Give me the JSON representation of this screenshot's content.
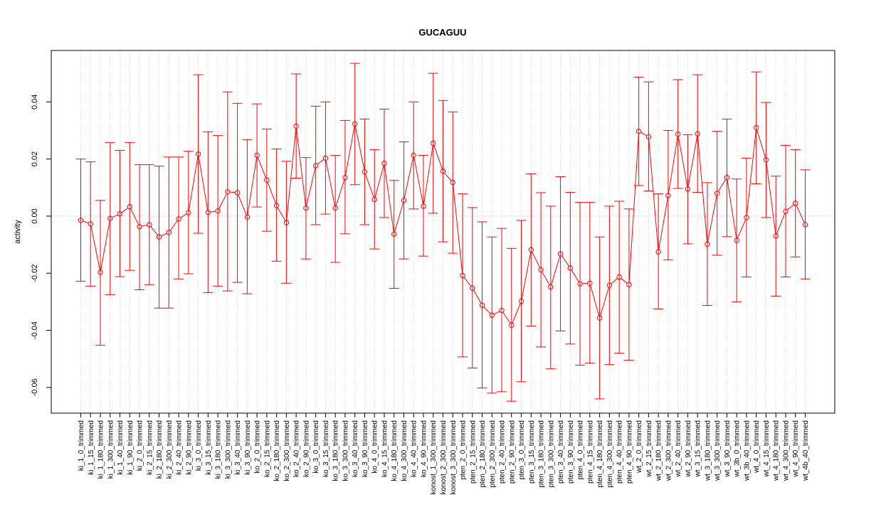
{
  "chart_data": {
    "type": "line",
    "title": "GUCAGUU",
    "xlabel": "",
    "ylabel": "activity",
    "ylim": [
      -0.069,
      0.058
    ],
    "yticks": [
      -0.06,
      -0.04,
      -0.02,
      0.0,
      0.02,
      0.04
    ],
    "ytick_labels": [
      "-0.06",
      "-0.04",
      "-0.02",
      "0.00",
      "0.02",
      "0.04"
    ],
    "grid": true,
    "reference_line": 0,
    "colors": {
      "series": "#ff0000",
      "grid": "#d3d3d3",
      "axis": "#000000"
    },
    "series": [
      {
        "categories": [
          "ki_1_0_trimmed",
          "ki_1_15_trimmed",
          "ki_1_180_trimmed",
          "ki_1_300_trimmed",
          "ki_1_40_trimmed",
          "ki_1_90_trimmed",
          "ki_2_0_trimmed",
          "ki_2_15_trimmed",
          "ki_2_180_trimmed",
          "ki_2_300_trimmed",
          "ki_2_40_trimmed",
          "ki_2_90_trimmed",
          "ki_3_0_trimmed",
          "ki_3_15_trimmed",
          "ki_3_180_trimmed",
          "ki_3_300_trimmed",
          "ki_3_40_trimmed",
          "ki_3_90_trimmed",
          "ko_2_0_trimmed",
          "ko_2_15_trimmed",
          "ko_2_180_trimmed",
          "ko_2_300_trimmed",
          "ko_2_40_trimmed",
          "ko_2_90_trimmed",
          "ko_3_0_trimmed",
          "ko_3_15_trimmed",
          "ko_3_180_trimmed",
          "ko_3_300_trimmed",
          "ko_3_40_trimmed",
          "ko_3_90_trimmed",
          "ko_4_0_trimmed",
          "ko_4_15_trimmed",
          "ko_4_180_trimmed",
          "ko_4_300_trimmed",
          "ko_4_40_trimmed",
          "ko_4_90_trimmed",
          "konost_1_300_trimmed",
          "konost_2_300_trimmed",
          "konost_3_300_trimmed",
          "pten_2_0_trimmed",
          "pten_2_15_trimmed",
          "pten_2_180_trimmed",
          "pten_2_300_trimmed",
          "pten_2_40_trimmed",
          "pten_2_90_trimmed",
          "pten_3_0_trimmed",
          "pten_3_15_trimmed",
          "pten_3_180_trimmed",
          "pten_3_300_trimmed",
          "pten_3_40_trimmed",
          "pten_3_90_trimmed",
          "pten_4_0_trimmed",
          "pten_4_15_trimmed",
          "pten_4_180_trimmed",
          "pten_4_300_trimmed",
          "pten_4_40_trimmed",
          "pten_4_90_trimmed",
          "wt_2_0_trimmed",
          "wt_2_15_trimmed",
          "wt_2_180_trimmed",
          "wt_2_300_trimmed",
          "wt_2_40_trimmed",
          "wt_2_90_trimmed",
          "wt_3_15_trimmed",
          "wt_3_180_trimmed",
          "wt_3_300_trimmed",
          "wt_3_90_trimmed",
          "wt_3b_0_trimmed",
          "wt_3b_40_trimmed",
          "wt_4_0_trimmed",
          "wt_4_15_trimmed",
          "wt_4_180_trimmed",
          "wt_4_300_trimmed",
          "wt_4_90_trimmed",
          "wt_4b_40_trimmed"
        ],
        "values": [
          -0.0015,
          -0.0027,
          -0.0197,
          -0.0008,
          0.0008,
          0.0033,
          -0.0037,
          -0.003,
          -0.0073,
          -0.0057,
          -0.001,
          0.0012,
          0.0217,
          0.0013,
          0.0018,
          0.0085,
          0.0082,
          -0.0003,
          0.0213,
          0.0126,
          0.0037,
          -0.0023,
          0.0315,
          0.0028,
          0.0177,
          0.0203,
          0.0028,
          0.0135,
          0.0323,
          0.0155,
          0.0058,
          0.0185,
          -0.0063,
          0.0055,
          0.0213,
          0.0035,
          0.0255,
          0.0157,
          0.0118,
          -0.0208,
          -0.0252,
          -0.0312,
          -0.0347,
          -0.033,
          -0.0382,
          -0.0298,
          -0.0118,
          -0.0188,
          -0.0248,
          -0.0132,
          -0.0182,
          -0.0237,
          -0.0235,
          -0.0357,
          -0.0242,
          -0.0213,
          -0.024,
          0.0297,
          0.0278,
          -0.0125,
          0.0072,
          0.0287,
          0.0095,
          0.0288,
          -0.0098,
          0.008,
          0.0135,
          -0.0085,
          -0.0005,
          0.031,
          0.0197,
          -0.007,
          0.0017,
          0.0045,
          -0.003
        ],
        "upper": [
          0.02,
          0.019,
          0.0055,
          0.0258,
          0.023,
          0.0258,
          0.018,
          0.018,
          0.0175,
          0.0207,
          0.0207,
          0.0227,
          0.0495,
          0.0295,
          0.0282,
          0.0435,
          0.0395,
          0.0268,
          0.0393,
          0.0305,
          0.0235,
          0.0192,
          0.0498,
          0.0205,
          0.0385,
          0.04,
          0.0213,
          0.0335,
          0.0535,
          0.034,
          0.0233,
          0.0375,
          0.0125,
          0.026,
          0.04,
          0.0213,
          0.05,
          0.0405,
          0.0365,
          0.0078,
          0.003,
          -0.002,
          -0.0073,
          -0.0043,
          -0.0113,
          -0.0015,
          0.0148,
          0.0082,
          0.0035,
          0.0138,
          0.0083,
          0.0048,
          0.0048,
          -0.0073,
          0.0035,
          0.0052,
          0.0025,
          0.0487,
          0.047,
          0.0078,
          0.03,
          0.0478,
          0.0285,
          0.0495,
          0.0117,
          0.0297,
          0.034,
          0.013,
          0.0203,
          0.0505,
          0.0398,
          0.014,
          0.0248,
          0.0233,
          0.0162
        ],
        "lower": [
          -0.0228,
          -0.0245,
          -0.0452,
          -0.0275,
          -0.0212,
          -0.019,
          -0.0258,
          -0.024,
          -0.0322,
          -0.0322,
          -0.022,
          -0.0202,
          -0.006,
          -0.0268,
          -0.0245,
          -0.0262,
          -0.0232,
          -0.0272,
          0.0032,
          -0.0053,
          -0.0158,
          -0.0235,
          0.0133,
          -0.015,
          -0.003,
          0.0007,
          -0.0162,
          -0.0062,
          0.011,
          -0.003,
          -0.0115,
          -0.0005,
          -0.0253,
          -0.015,
          0.0025,
          -0.014,
          0.001,
          -0.009,
          -0.013,
          -0.0493,
          -0.0532,
          -0.0602,
          -0.062,
          -0.0615,
          -0.0648,
          -0.058,
          -0.0385,
          -0.0458,
          -0.0535,
          -0.0402,
          -0.0448,
          -0.0522,
          -0.0515,
          -0.064,
          -0.052,
          -0.048,
          -0.0505,
          0.0107,
          0.0088,
          -0.0325,
          -0.0153,
          0.0097,
          -0.0097,
          0.0083,
          -0.0313,
          -0.0137,
          -0.0072,
          -0.03,
          -0.0213,
          0.0113,
          -0.0005,
          -0.028,
          -0.0213,
          -0.0143,
          -0.022
        ]
      }
    ]
  }
}
